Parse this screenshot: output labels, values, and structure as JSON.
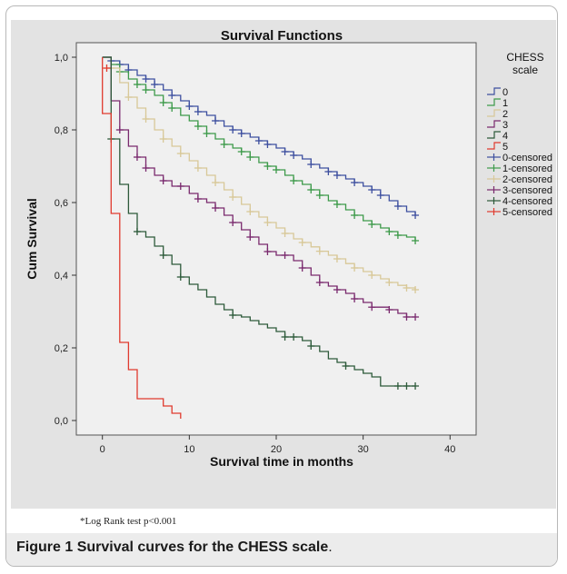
{
  "chart_data": {
    "type": "line",
    "title": "Survival Functions",
    "xlabel": "Survival time in months",
    "ylabel": "Cum Survival",
    "xlim": [
      -3,
      43
    ],
    "ylim": [
      -0.04,
      1.04
    ],
    "xticks": [
      0,
      10,
      20,
      30,
      40
    ],
    "xtick_labels": [
      "0",
      "10",
      "20",
      "30",
      "40"
    ],
    "yticks": [
      0.0,
      0.2,
      0.4,
      0.6,
      0.8,
      1.0
    ],
    "ytick_labels": [
      "0,0",
      "0,2",
      "0,4",
      "0,6",
      "0,8",
      "1,0"
    ],
    "legend_title": [
      "CHESS",
      "scale"
    ],
    "legend_position": "right",
    "background": "#f0f0f0",
    "series": [
      {
        "name": "0",
        "censored_name": "0-censored",
        "color": "#3d4f9f",
        "steps": [
          [
            0,
            1.0
          ],
          [
            1,
            0.99
          ],
          [
            2,
            0.98
          ],
          [
            3,
            0.965
          ],
          [
            4,
            0.95
          ],
          [
            5,
            0.94
          ],
          [
            6,
            0.925
          ],
          [
            7,
            0.91
          ],
          [
            8,
            0.895
          ],
          [
            9,
            0.88
          ],
          [
            10,
            0.865
          ],
          [
            11,
            0.85
          ],
          [
            12,
            0.84
          ],
          [
            13,
            0.825
          ],
          [
            14,
            0.81
          ],
          [
            15,
            0.8
          ],
          [
            16,
            0.79
          ],
          [
            17,
            0.78
          ],
          [
            18,
            0.77
          ],
          [
            19,
            0.76
          ],
          [
            20,
            0.75
          ],
          [
            21,
            0.74
          ],
          [
            22,
            0.73
          ],
          [
            23,
            0.72
          ],
          [
            24,
            0.705
          ],
          [
            25,
            0.695
          ],
          [
            26,
            0.685
          ],
          [
            27,
            0.675
          ],
          [
            28,
            0.665
          ],
          [
            29,
            0.655
          ],
          [
            30,
            0.645
          ],
          [
            31,
            0.635
          ],
          [
            32,
            0.62
          ],
          [
            33,
            0.605
          ],
          [
            34,
            0.59
          ],
          [
            35,
            0.575
          ],
          [
            36,
            0.565
          ]
        ],
        "censored": [
          [
            1,
            0.99
          ],
          [
            2,
            0.98
          ],
          [
            3,
            0.965
          ],
          [
            5,
            0.94
          ],
          [
            6,
            0.925
          ],
          [
            8,
            0.895
          ],
          [
            10,
            0.865
          ],
          [
            11,
            0.85
          ],
          [
            13,
            0.825
          ],
          [
            15,
            0.8
          ],
          [
            16,
            0.79
          ],
          [
            18,
            0.77
          ],
          [
            19,
            0.76
          ],
          [
            21,
            0.74
          ],
          [
            22,
            0.73
          ],
          [
            24,
            0.705
          ],
          [
            26,
            0.685
          ],
          [
            27,
            0.675
          ],
          [
            29,
            0.655
          ],
          [
            31,
            0.635
          ],
          [
            32,
            0.62
          ],
          [
            34,
            0.59
          ],
          [
            36,
            0.565
          ]
        ]
      },
      {
        "name": "1",
        "censored_name": "1-censored",
        "color": "#3d9a4a",
        "steps": [
          [
            0,
            1.0
          ],
          [
            1,
            0.98
          ],
          [
            2,
            0.96
          ],
          [
            3,
            0.94
          ],
          [
            4,
            0.925
          ],
          [
            5,
            0.91
          ],
          [
            6,
            0.895
          ],
          [
            7,
            0.875
          ],
          [
            8,
            0.86
          ],
          [
            9,
            0.84
          ],
          [
            10,
            0.825
          ],
          [
            11,
            0.81
          ],
          [
            12,
            0.79
          ],
          [
            13,
            0.775
          ],
          [
            14,
            0.76
          ],
          [
            15,
            0.75
          ],
          [
            16,
            0.74
          ],
          [
            17,
            0.725
          ],
          [
            18,
            0.71
          ],
          [
            19,
            0.7
          ],
          [
            20,
            0.69
          ],
          [
            21,
            0.675
          ],
          [
            22,
            0.66
          ],
          [
            23,
            0.65
          ],
          [
            24,
            0.635
          ],
          [
            25,
            0.62
          ],
          [
            26,
            0.605
          ],
          [
            27,
            0.595
          ],
          [
            28,
            0.58
          ],
          [
            29,
            0.565
          ],
          [
            30,
            0.55
          ],
          [
            31,
            0.54
          ],
          [
            32,
            0.53
          ],
          [
            33,
            0.52
          ],
          [
            34,
            0.51
          ],
          [
            35,
            0.505
          ],
          [
            36,
            0.495
          ]
        ],
        "censored": [
          [
            2,
            0.96
          ],
          [
            4,
            0.925
          ],
          [
            5,
            0.91
          ],
          [
            7,
            0.875
          ],
          [
            8,
            0.86
          ],
          [
            11,
            0.81
          ],
          [
            12,
            0.79
          ],
          [
            14,
            0.76
          ],
          [
            16,
            0.74
          ],
          [
            17,
            0.725
          ],
          [
            19,
            0.7
          ],
          [
            20,
            0.69
          ],
          [
            22,
            0.66
          ],
          [
            24,
            0.635
          ],
          [
            25,
            0.62
          ],
          [
            27,
            0.595
          ],
          [
            29,
            0.565
          ],
          [
            31,
            0.54
          ],
          [
            33,
            0.52
          ],
          [
            34,
            0.51
          ],
          [
            36,
            0.495
          ]
        ]
      },
      {
        "name": "2",
        "censored_name": "2-censored",
        "color": "#d8c898",
        "steps": [
          [
            0,
            1.0
          ],
          [
            1,
            0.97
          ],
          [
            2,
            0.93
          ],
          [
            3,
            0.89
          ],
          [
            4,
            0.86
          ],
          [
            5,
            0.83
          ],
          [
            6,
            0.8
          ],
          [
            7,
            0.775
          ],
          [
            8,
            0.755
          ],
          [
            9,
            0.735
          ],
          [
            10,
            0.715
          ],
          [
            11,
            0.695
          ],
          [
            12,
            0.675
          ],
          [
            13,
            0.655
          ],
          [
            14,
            0.635
          ],
          [
            15,
            0.615
          ],
          [
            16,
            0.595
          ],
          [
            17,
            0.575
          ],
          [
            18,
            0.56
          ],
          [
            19,
            0.545
          ],
          [
            20,
            0.53
          ],
          [
            21,
            0.515
          ],
          [
            22,
            0.5
          ],
          [
            23,
            0.49
          ],
          [
            24,
            0.478
          ],
          [
            25,
            0.466
          ],
          [
            26,
            0.455
          ],
          [
            27,
            0.445
          ],
          [
            28,
            0.432
          ],
          [
            29,
            0.42
          ],
          [
            30,
            0.41
          ],
          [
            31,
            0.4
          ],
          [
            32,
            0.39
          ],
          [
            33,
            0.38
          ],
          [
            34,
            0.372
          ],
          [
            35,
            0.365
          ],
          [
            36,
            0.36
          ]
        ],
        "censored": [
          [
            1,
            0.97
          ],
          [
            3,
            0.89
          ],
          [
            5,
            0.83
          ],
          [
            7,
            0.775
          ],
          [
            9,
            0.735
          ],
          [
            11,
            0.695
          ],
          [
            13,
            0.655
          ],
          [
            15,
            0.615
          ],
          [
            17,
            0.575
          ],
          [
            19,
            0.545
          ],
          [
            21,
            0.515
          ],
          [
            23,
            0.49
          ],
          [
            25,
            0.466
          ],
          [
            27,
            0.445
          ],
          [
            29,
            0.42
          ],
          [
            31,
            0.4
          ],
          [
            33,
            0.38
          ],
          [
            35,
            0.365
          ],
          [
            36,
            0.36
          ]
        ]
      },
      {
        "name": "3",
        "censored_name": "3-censored",
        "color": "#7a2a6e",
        "steps": [
          [
            0,
            1.0
          ],
          [
            1,
            0.88
          ],
          [
            2,
            0.8
          ],
          [
            3,
            0.755
          ],
          [
            4,
            0.725
          ],
          [
            5,
            0.695
          ],
          [
            6,
            0.675
          ],
          [
            7,
            0.66
          ],
          [
            8,
            0.645
          ],
          [
            10,
            0.625
          ],
          [
            11,
            0.61
          ],
          [
            12,
            0.6
          ],
          [
            13,
            0.585
          ],
          [
            14,
            0.565
          ],
          [
            15,
            0.545
          ],
          [
            16,
            0.525
          ],
          [
            17,
            0.505
          ],
          [
            18,
            0.485
          ],
          [
            19,
            0.465
          ],
          [
            20,
            0.455
          ],
          [
            22,
            0.44
          ],
          [
            23,
            0.42
          ],
          [
            24,
            0.4
          ],
          [
            25,
            0.38
          ],
          [
            26,
            0.37
          ],
          [
            27,
            0.36
          ],
          [
            28,
            0.35
          ],
          [
            29,
            0.335
          ],
          [
            30,
            0.325
          ],
          [
            31,
            0.312
          ],
          [
            33,
            0.305
          ],
          [
            34,
            0.295
          ],
          [
            35,
            0.285
          ],
          [
            36,
            0.285
          ]
        ],
        "censored": [
          [
            2,
            0.8
          ],
          [
            4,
            0.725
          ],
          [
            5,
            0.695
          ],
          [
            7,
            0.66
          ],
          [
            9,
            0.645
          ],
          [
            11,
            0.61
          ],
          [
            13,
            0.585
          ],
          [
            15,
            0.545
          ],
          [
            17,
            0.505
          ],
          [
            19,
            0.465
          ],
          [
            21,
            0.455
          ],
          [
            23,
            0.42
          ],
          [
            25,
            0.38
          ],
          [
            27,
            0.36
          ],
          [
            29,
            0.335
          ],
          [
            31,
            0.312
          ],
          [
            33,
            0.305
          ],
          [
            35,
            0.285
          ],
          [
            36,
            0.285
          ]
        ]
      },
      {
        "name": "4",
        "censored_name": "4-censored",
        "color": "#2d5a3a",
        "steps": [
          [
            0,
            1.0
          ],
          [
            1,
            0.775
          ],
          [
            2,
            0.65
          ],
          [
            3,
            0.57
          ],
          [
            4,
            0.52
          ],
          [
            5,
            0.505
          ],
          [
            6,
            0.48
          ],
          [
            7,
            0.455
          ],
          [
            8,
            0.43
          ],
          [
            9,
            0.395
          ],
          [
            10,
            0.375
          ],
          [
            11,
            0.36
          ],
          [
            12,
            0.34
          ],
          [
            13,
            0.32
          ],
          [
            14,
            0.305
          ],
          [
            15,
            0.29
          ],
          [
            16,
            0.285
          ],
          [
            17,
            0.275
          ],
          [
            18,
            0.265
          ],
          [
            19,
            0.255
          ],
          [
            20,
            0.245
          ],
          [
            21,
            0.23
          ],
          [
            22,
            0.23
          ],
          [
            23,
            0.22
          ],
          [
            24,
            0.205
          ],
          [
            25,
            0.19
          ],
          [
            26,
            0.17
          ],
          [
            27,
            0.16
          ],
          [
            28,
            0.15
          ],
          [
            29,
            0.14
          ],
          [
            30,
            0.13
          ],
          [
            31,
            0.12
          ],
          [
            32,
            0.095
          ],
          [
            36,
            0.095
          ]
        ],
        "censored": [
          [
            1,
            0.775
          ],
          [
            4,
            0.52
          ],
          [
            7,
            0.455
          ],
          [
            9,
            0.395
          ],
          [
            15,
            0.29
          ],
          [
            21,
            0.23
          ],
          [
            22,
            0.23
          ],
          [
            24,
            0.205
          ],
          [
            28,
            0.15
          ],
          [
            34,
            0.095
          ],
          [
            35,
            0.095
          ],
          [
            36,
            0.095
          ]
        ]
      },
      {
        "name": "5",
        "censored_name": "5-censored",
        "color": "#e03a2e",
        "steps": [
          [
            0,
            1.0
          ],
          [
            0,
            0.845
          ],
          [
            1,
            0.845
          ],
          [
            1,
            0.57
          ],
          [
            2,
            0.57
          ],
          [
            2,
            0.215
          ],
          [
            3,
            0.215
          ],
          [
            3,
            0.14
          ],
          [
            4,
            0.14
          ],
          [
            4,
            0.06
          ],
          [
            7,
            0.06
          ],
          [
            7,
            0.04
          ],
          [
            8,
            0.04
          ],
          [
            8,
            0.02
          ],
          [
            9,
            0.02
          ],
          [
            9,
            0.005
          ]
        ],
        "censored": [
          [
            0.5,
            0.97
          ]
        ]
      }
    ]
  },
  "footnote": "*Log Rank test p<0.001",
  "caption": {
    "label": "Figure 1",
    "text": "Survival curves for the CHESS scale",
    "end": "."
  }
}
